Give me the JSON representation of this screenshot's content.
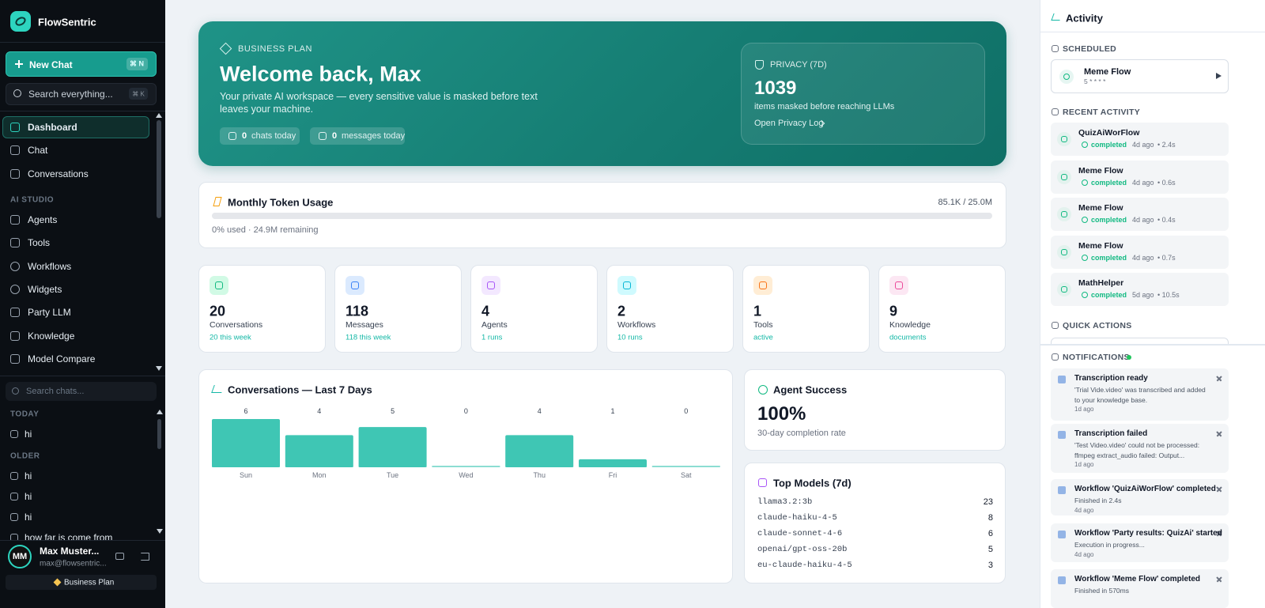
{
  "sidebar": {
    "brand": "FlowSentric",
    "new_chat": {
      "label": "New Chat",
      "shortcut": "⌘ N"
    },
    "search": {
      "placeholder": "Search everything...",
      "shortcut": "⌘ K"
    },
    "nav": [
      "Dashboard",
      "Chat",
      "Conversations"
    ],
    "section_title": "AI STUDIO",
    "studio_nav": [
      "Agents",
      "Tools",
      "Workflows",
      "Widgets",
      "Party LLM",
      "Knowledge",
      "Model Compare"
    ],
    "chat_search": "Search chats...",
    "history": [
      {
        "group": "TODAY",
        "items": [
          "hi"
        ]
      },
      {
        "group": "OLDER",
        "items": [
          "hi",
          "hi",
          "hi",
          "how far is come from"
        ]
      }
    ],
    "user": {
      "initials": "MM",
      "name": "Max Muster...",
      "email": "max@flowsentric...",
      "plan": "Business Plan"
    }
  },
  "hero": {
    "badge": "BUSINESS PLAN",
    "title": "Welcome back, Max",
    "description": "Your private AI workspace — every sensitive value is masked before text leaves your machine.",
    "stats": [
      {
        "value": 0,
        "label": "chats today"
      },
      {
        "value": 0,
        "label": "messages today"
      }
    ],
    "privacy": {
      "title": "PRIVACY (7D)",
      "value": 1039,
      "description": "items masked before reaching LLMs",
      "link": "Open Privacy Log"
    }
  },
  "token_usage": {
    "title": "Monthly Token Usage",
    "amount": "85.1K / 25.0M",
    "note": "0% used · 24.9M remaining"
  },
  "stat_cards": [
    {
      "value": 20,
      "label": "Conversations",
      "sub": "20 this week"
    },
    {
      "value": 118,
      "label": "Messages",
      "sub": "118 this week"
    },
    {
      "value": 4,
      "label": "Agents",
      "sub": "1 runs"
    },
    {
      "value": 2,
      "label": "Workflows",
      "sub": "10 runs"
    },
    {
      "value": 1,
      "label": "Tools",
      "sub": "active"
    },
    {
      "value": 9,
      "label": "Knowledge",
      "sub": "documents"
    }
  ],
  "chart_data": {
    "type": "bar",
    "title": "Conversations — Last 7 Days",
    "categories": [
      "Sun",
      "Mon",
      "Tue",
      "Wed",
      "Thu",
      "Fri",
      "Sat"
    ],
    "values": [
      6,
      4,
      5,
      0,
      4,
      1,
      0
    ],
    "color": "#3fc6b4"
  },
  "agent_success": {
    "title": "Agent Success",
    "value": "100%",
    "description": "30-day completion rate"
  },
  "top_models": {
    "title": "Top Models (7d)",
    "rows": [
      {
        "name": "llama3.2:3b",
        "count": 23
      },
      {
        "name": "claude-haiku-4-5",
        "count": 8
      },
      {
        "name": "claude-sonnet-4-6",
        "count": 6
      },
      {
        "name": "openai/gpt-oss-20b",
        "count": 5
      },
      {
        "name": "eu-claude-haiku-4-5",
        "count": 3
      }
    ]
  },
  "activity": {
    "title": "Activity",
    "scheduled_title": "SCHEDULED",
    "scheduled": [
      {
        "name": "Meme Flow",
        "schedule": "5 * * * *"
      }
    ],
    "recent_title": "RECENT ACTIVITY",
    "recent": [
      {
        "name": "QuizAiWorFlow",
        "status": "completed",
        "time": "4d ago",
        "duration": "• 2.4s"
      },
      {
        "name": "Meme Flow",
        "status": "completed",
        "time": "4d ago",
        "duration": "• 0.6s"
      },
      {
        "name": "Meme Flow",
        "status": "completed",
        "time": "4d ago",
        "duration": "• 0.4s"
      },
      {
        "name": "Meme Flow",
        "status": "completed",
        "time": "4d ago",
        "duration": "• 0.7s"
      },
      {
        "name": "MathHelper",
        "status": "completed",
        "time": "5d ago",
        "duration": "• 10.5s"
      }
    ],
    "quick_actions_title": "QUICK ACTIONS",
    "notifications_title": "NOTIFICATIONS",
    "notifications": [
      {
        "title": "Transcription ready",
        "body": "'Trial Vide.video' was transcribed and added to your knowledge base.",
        "time": "1d ago"
      },
      {
        "title": "Transcription failed",
        "body": "'Test Video.video' could not be processed: ffmpeg extract_audio failed: Output...",
        "time": "1d ago"
      },
      {
        "title": "Workflow 'QuizAiWorFlow' completed",
        "body": "Finished in 2.4s",
        "time": "4d ago"
      },
      {
        "title": "Workflow 'Party results: QuizAi' started",
        "body": "Execution in progress...",
        "time": "4d ago"
      },
      {
        "title": "Workflow 'Meme Flow' completed",
        "body": "Finished in 570ms"
      }
    ]
  }
}
